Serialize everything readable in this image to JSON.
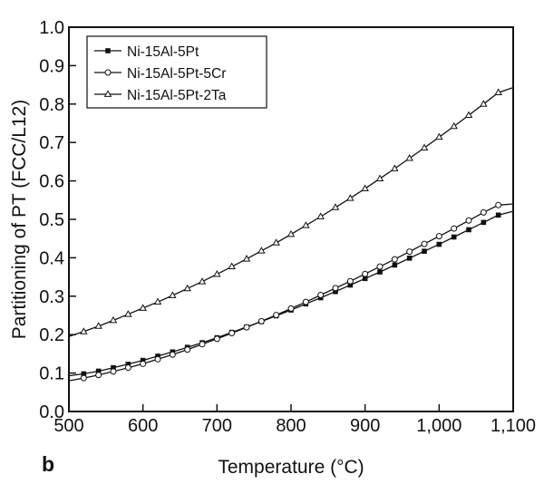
{
  "panel_label": "b",
  "chart_data": {
    "type": "line",
    "xlabel": "Temperature (°C)",
    "ylabel": "Partitioning of PT (FCC/L12)",
    "xlim": [
      500,
      1100
    ],
    "ylim": [
      0.0,
      1.0
    ],
    "x_ticks": [
      500,
      600,
      700,
      800,
      900,
      1000,
      1100
    ],
    "x_tick_labels": [
      "500",
      "600",
      "700",
      "800",
      "900",
      "1,000",
      "1,100"
    ],
    "y_ticks": [
      0.0,
      0.1,
      0.2,
      0.3,
      0.4,
      0.5,
      0.6,
      0.7,
      0.8,
      0.9,
      1.0
    ],
    "y_tick_labels": [
      "0.0",
      "0.1",
      "0.2",
      "0.3",
      "0.4",
      "0.5",
      "0.6",
      "0.7",
      "0.8",
      "0.9",
      "1.0"
    ],
    "grid": false,
    "legend_position": "top-left",
    "series": [
      {
        "name": "Ni-15Al-5Pt",
        "marker": "filled-square",
        "x": [
          500,
          520,
          540,
          560,
          580,
          600,
          620,
          640,
          660,
          680,
          700,
          720,
          740,
          760,
          780,
          800,
          820,
          840,
          860,
          880,
          900,
          920,
          940,
          960,
          980,
          1000,
          1020,
          1040,
          1060,
          1080,
          1100
        ],
        "y": [
          0.093,
          0.098,
          0.105,
          0.114,
          0.123,
          0.133,
          0.144,
          0.155,
          0.167,
          0.179,
          0.192,
          0.206,
          0.22,
          0.234,
          0.249,
          0.264,
          0.28,
          0.296,
          0.312,
          0.329,
          0.346,
          0.363,
          0.381,
          0.399,
          0.417,
          0.435,
          0.454,
          0.473,
          0.492,
          0.511,
          0.521
        ]
      },
      {
        "name": "Ni-15Al-5Pt-5Cr",
        "marker": "open-circle",
        "x": [
          500,
          520,
          540,
          560,
          580,
          600,
          620,
          640,
          660,
          680,
          700,
          720,
          740,
          760,
          780,
          800,
          820,
          840,
          860,
          880,
          900,
          920,
          940,
          960,
          980,
          1000,
          1020,
          1040,
          1060,
          1080,
          1100
        ],
        "y": [
          0.08,
          0.087,
          0.095,
          0.104,
          0.114,
          0.124,
          0.136,
          0.148,
          0.161,
          0.175,
          0.189,
          0.204,
          0.219,
          0.235,
          0.251,
          0.268,
          0.285,
          0.303,
          0.321,
          0.339,
          0.358,
          0.377,
          0.396,
          0.416,
          0.436,
          0.456,
          0.476,
          0.497,
          0.518,
          0.537,
          0.54
        ]
      },
      {
        "name": "Ni-15Al-5Pt-2Ta",
        "marker": "open-triangle",
        "x": [
          500,
          520,
          540,
          560,
          580,
          600,
          620,
          640,
          660,
          680,
          700,
          720,
          740,
          760,
          780,
          800,
          820,
          840,
          860,
          880,
          900,
          920,
          940,
          960,
          980,
          1000,
          1020,
          1040,
          1060,
          1080,
          1100
        ],
        "y": [
          0.195,
          0.208,
          0.222,
          0.237,
          0.253,
          0.269,
          0.285,
          0.302,
          0.32,
          0.338,
          0.357,
          0.377,
          0.397,
          0.418,
          0.439,
          0.461,
          0.484,
          0.507,
          0.531,
          0.555,
          0.58,
          0.606,
          0.632,
          0.659,
          0.686,
          0.714,
          0.742,
          0.771,
          0.8,
          0.83,
          0.843
        ]
      }
    ]
  }
}
